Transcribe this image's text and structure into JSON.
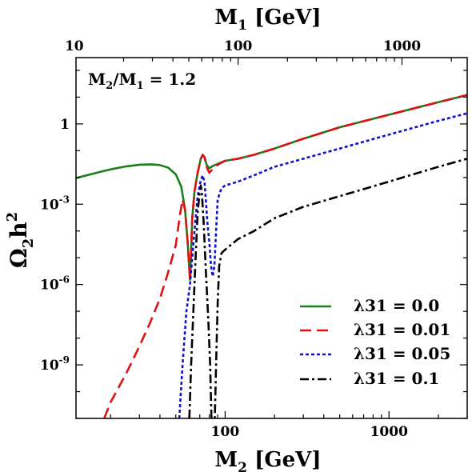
{
  "chart_data": {
    "type": "line",
    "annotation": "M2/M1 = 1.2",
    "xlabel": "M2 [GeV]",
    "x2label": "M1 [GeV]",
    "ylabel": "Ω2h2",
    "xscale": "log",
    "yscale": "log",
    "xlim": [
      12.3,
      3000
    ],
    "x2lim": [
      10.25,
      2500
    ],
    "ylim": [
      1e-11,
      300.0
    ],
    "x_ticks": [
      {
        "value": 100,
        "label": "100"
      },
      {
        "value": 1000,
        "label": "1000"
      }
    ],
    "x2_ticks": [
      {
        "value": 10,
        "label": "10"
      },
      {
        "value": 100,
        "label": "100"
      },
      {
        "value": 1000,
        "label": "1000"
      }
    ],
    "y_ticks": [
      {
        "value": 1e-09,
        "base": "10",
        "exp": "-9"
      },
      {
        "value": 1e-06,
        "base": "10",
        "exp": "-6"
      },
      {
        "value": 0.001,
        "base": "10",
        "exp": "-3"
      },
      {
        "value": 1,
        "base": "1",
        "exp": ""
      }
    ],
    "legend_position": "bottom-right",
    "series": [
      {
        "name": "λ31 = 0.0",
        "color": "#1a7f1a",
        "dash": "solid",
        "points": [
          [
            12.3,
            0.0095
          ],
          [
            15,
            0.013
          ],
          [
            20,
            0.02
          ],
          [
            25,
            0.026
          ],
          [
            30,
            0.03
          ],
          [
            35,
            0.031
          ],
          [
            40,
            0.029
          ],
          [
            45,
            0.023
          ],
          [
            50,
            0.013
          ],
          [
            54,
            0.0045
          ],
          [
            57,
            0.0006
          ],
          [
            59,
            4e-05
          ],
          [
            61,
            1.5e-06
          ],
          [
            62,
            1.8e-05
          ],
          [
            63,
            0.0003
          ],
          [
            65,
            0.003
          ],
          [
            68,
            0.015
          ],
          [
            71,
            0.05
          ],
          [
            73,
            0.07
          ],
          [
            75,
            0.055
          ],
          [
            77,
            0.03
          ],
          [
            80,
            0.022
          ],
          [
            85,
            0.028
          ],
          [
            90,
            0.032
          ],
          [
            100,
            0.042
          ],
          [
            120,
            0.05
          ],
          [
            150,
            0.07
          ],
          [
            200,
            0.12
          ],
          [
            300,
            0.28
          ],
          [
            500,
            0.75
          ],
          [
            1000,
            2.2
          ],
          [
            2000,
            6.5
          ],
          [
            3000,
            12
          ]
        ]
      },
      {
        "name": "λ31 = 0.01",
        "color": "#dd1111",
        "dash": "long-dash",
        "points": [
          [
            18.3,
            1e-11
          ],
          [
            20,
            4e-11
          ],
          [
            25,
            5e-10
          ],
          [
            30,
            5e-09
          ],
          [
            35,
            4e-08
          ],
          [
            40,
            3e-07
          ],
          [
            45,
            3e-06
          ],
          [
            50,
            3e-05
          ],
          [
            53,
            0.0004
          ],
          [
            55,
            0.0015
          ],
          [
            57,
            0.0006
          ],
          [
            59,
            4e-05
          ],
          [
            61,
            1.5e-06
          ],
          [
            62,
            1.8e-05
          ],
          [
            63,
            0.0003
          ],
          [
            65,
            0.003
          ],
          [
            68,
            0.015
          ],
          [
            71,
            0.05
          ],
          [
            73,
            0.07
          ],
          [
            75,
            0.055
          ],
          [
            77,
            0.025
          ],
          [
            80,
            0.015
          ],
          [
            85,
            0.022
          ],
          [
            90,
            0.03
          ],
          [
            100,
            0.042
          ],
          [
            120,
            0.05
          ],
          [
            150,
            0.07
          ],
          [
            200,
            0.12
          ],
          [
            300,
            0.28
          ],
          [
            500,
            0.75
          ],
          [
            1000,
            2.2
          ],
          [
            2000,
            6.5
          ],
          [
            3000,
            12
          ]
        ]
      },
      {
        "name": "λ31 = 0.05",
        "color": "#1111cc",
        "dash": "dotted",
        "points": [
          [
            52.5,
            1e-11
          ],
          [
            55,
            1e-09
          ],
          [
            58,
            1e-07
          ],
          [
            61,
            1e-06
          ],
          [
            63,
            1e-05
          ],
          [
            65,
            0.0001
          ],
          [
            68,
            0.002
          ],
          [
            71,
            0.008
          ],
          [
            73,
            0.012
          ],
          [
            75,
            0.006
          ],
          [
            78,
            0.0002
          ],
          [
            80,
            4e-05
          ],
          [
            82,
            5e-06
          ],
          [
            84,
            2e-06
          ],
          [
            86,
            5e-06
          ],
          [
            88,
            0.0001
          ],
          [
            90,
            0.0015
          ],
          [
            95,
            0.004
          ],
          [
            100,
            0.005
          ],
          [
            120,
            0.007
          ],
          [
            150,
            0.012
          ],
          [
            200,
            0.025
          ],
          [
            300,
            0.05
          ],
          [
            500,
            0.12
          ],
          [
            1000,
            0.4
          ],
          [
            2000,
            1.3
          ],
          [
            3000,
            2.5
          ]
        ]
      },
      {
        "name": "λ31 = 0.1",
        "color": "#000000",
        "dash": "dash-dot",
        "points": [
          [
            60.5,
            1e-11
          ],
          [
            62,
            1e-09
          ],
          [
            64,
            1e-07
          ],
          [
            66,
            1e-05
          ],
          [
            68,
            0.0005
          ],
          [
            70,
            0.003
          ],
          [
            71,
            0.005
          ],
          [
            72,
            0.003
          ],
          [
            74,
            0.0002
          ],
          [
            76,
            5e-06
          ],
          [
            79,
            4e-08
          ],
          [
            81,
            1e-09
          ],
          [
            82.5,
            1e-11
          ],
          [
            86.5,
            1e-11
          ],
          [
            88,
            1e-09
          ],
          [
            90,
            2e-07
          ],
          [
            92,
            5e-06
          ],
          [
            95,
            1.5e-05
          ],
          [
            100,
            2e-05
          ],
          [
            120,
            5e-05
          ],
          [
            150,
            0.0001
          ],
          [
            200,
            0.0003
          ],
          [
            300,
            0.0008
          ],
          [
            500,
            0.002
          ],
          [
            1000,
            0.007
          ],
          [
            2000,
            0.025
          ],
          [
            3000,
            0.05
          ]
        ]
      }
    ]
  }
}
